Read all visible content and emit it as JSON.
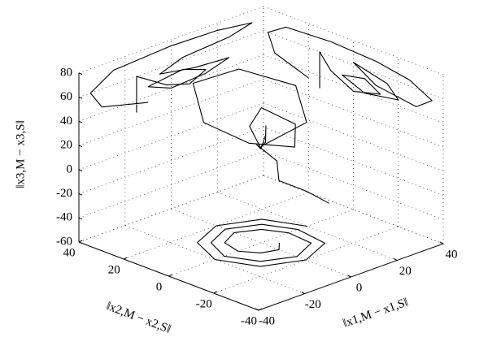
{
  "chart_data": {
    "type": "line3d",
    "xlabel": "‖x1,M − x1,S‖",
    "ylabel": "‖x2,M − x2,S‖",
    "zlabel": "‖x3,M − x3,S‖",
    "xlim": [
      -40,
      40
    ],
    "xticks": [
      -40,
      -20,
      0,
      20,
      40
    ],
    "ylim": [
      -40,
      40
    ],
    "yticks": [
      -40,
      -20,
      0,
      20,
      40
    ],
    "zlim": [
      -60,
      80
    ],
    "zticks": [
      -60,
      -40,
      -20,
      0,
      20,
      40,
      60,
      80
    ],
    "grid": true,
    "series": [
      {
        "color": "#000000",
        "x": [
          0,
          10,
          15,
          5,
          -10,
          -20,
          -15,
          0,
          10,
          5,
          -5,
          -8,
          0,
          6,
          2,
          -3,
          0,
          2,
          -2,
          5,
          10
        ],
        "y": [
          0,
          -10,
          0,
          15,
          20,
          5,
          -10,
          -15,
          -5,
          5,
          0,
          -8,
          -2,
          4,
          0,
          -3,
          2,
          -5,
          -10,
          -15,
          -20
        ],
        "z": [
          20,
          40,
          60,
          70,
          65,
          50,
          40,
          30,
          35,
          45,
          40,
          30,
          25,
          30,
          28,
          22,
          20,
          10,
          0,
          -10,
          -20
        ]
      },
      {
        "color": "#000000",
        "x": [
          -10,
          -30,
          -35,
          -25,
          0,
          20,
          35,
          25,
          5,
          -5,
          10,
          25,
          15,
          0,
          -10,
          5,
          15,
          8,
          -2,
          -15,
          -15
        ],
        "y": [
          40,
          40,
          40,
          40,
          40,
          40,
          40,
          40,
          40,
          40,
          40,
          40,
          40,
          40,
          40,
          40,
          40,
          40,
          40,
          40,
          40
        ],
        "z": [
          35,
          45,
          60,
          72,
          75,
          74,
          70,
          65,
          62,
          55,
          50,
          48,
          42,
          40,
          48,
          52,
          45,
          38,
          44,
          60,
          30
        ]
      },
      {
        "color": "#000000",
        "x": [
          40,
          40,
          40,
          40,
          40,
          40,
          40,
          40,
          40,
          40,
          40,
          40,
          40,
          40,
          40,
          40,
          40,
          40,
          40,
          40,
          40
        ],
        "y": [
          20,
          35,
          38,
          30,
          10,
          -10,
          -25,
          -35,
          -28,
          -10,
          0,
          -15,
          -20,
          -5,
          5,
          -5,
          -12,
          0,
          10,
          15,
          15
        ],
        "z": [
          35,
          45,
          60,
          70,
          72,
          70,
          65,
          55,
          45,
          50,
          62,
          55,
          45,
          40,
          48,
          52,
          44,
          38,
          48,
          60,
          30
        ]
      },
      {
        "color": "#000000",
        "x": [
          20,
          14,
          0,
          -14,
          -20,
          -14,
          0,
          14,
          16,
          11,
          0,
          -11,
          -16,
          -11,
          0,
          11,
          12,
          8,
          0,
          -8,
          -10,
          -6,
          0,
          4
        ],
        "y": [
          0,
          14,
          20,
          14,
          0,
          -14,
          -20,
          -14,
          0,
          11,
          16,
          11,
          0,
          -11,
          -16,
          -11,
          0,
          8,
          12,
          8,
          0,
          -6,
          -8,
          -4
        ],
        "z": [
          -60,
          -60,
          -60,
          -60,
          -60,
          -60,
          -60,
          -60,
          -60,
          -60,
          -60,
          -60,
          -60,
          -60,
          -60,
          -60,
          -60,
          -60,
          -60,
          -60,
          -60,
          -60,
          -60,
          -60
        ]
      }
    ]
  }
}
